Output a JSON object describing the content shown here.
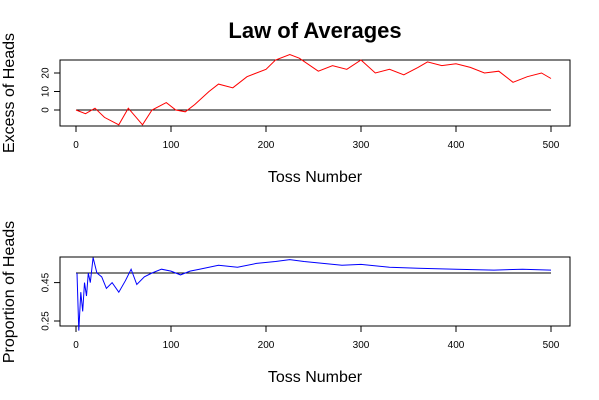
{
  "chart_data": [
    {
      "type": "line",
      "title": "Law of Averages",
      "xlabel": "Toss Number",
      "ylabel": "Excess of Heads",
      "xlim": [
        0,
        500
      ],
      "ylim": [
        -8,
        30
      ],
      "x_ticks": [
        0,
        100,
        200,
        300,
        400,
        500
      ],
      "y_ticks": [
        0,
        10,
        20
      ],
      "reference_line": 0,
      "series": [
        {
          "color": "#ff0000",
          "x": [
            0,
            10,
            20,
            30,
            45,
            55,
            70,
            80,
            95,
            105,
            115,
            125,
            140,
            150,
            165,
            180,
            200,
            210,
            225,
            235,
            255,
            270,
            285,
            300,
            315,
            330,
            345,
            360,
            370,
            385,
            400,
            415,
            430,
            445,
            460,
            475,
            490,
            500
          ],
          "values": [
            0,
            -2,
            1,
            -4,
            -8,
            1,
            -8,
            0,
            4,
            0,
            -1,
            3,
            10,
            14,
            12,
            18,
            22,
            27,
            30,
            28,
            21,
            24,
            22,
            27,
            20,
            22,
            19,
            23,
            26,
            24,
            25,
            23,
            20,
            21,
            15,
            18,
            20,
            17
          ]
        }
      ]
    },
    {
      "type": "line",
      "xlabel": "Toss Number",
      "ylabel": "Proportion of Heads",
      "xlim": [
        0,
        500
      ],
      "ylim": [
        0.2,
        0.62
      ],
      "x_ticks": [
        0,
        100,
        200,
        300,
        400,
        500
      ],
      "y_ticks": [
        0.25,
        0.45
      ],
      "reference_line": 0.5,
      "series": [
        {
          "color": "#0000ff",
          "x": [
            1,
            3,
            5,
            7,
            9,
            11,
            13,
            15,
            18,
            22,
            27,
            32,
            38,
            45,
            52,
            58,
            64,
            72,
            80,
            90,
            100,
            110,
            120,
            130,
            150,
            170,
            190,
            210,
            225,
            240,
            260,
            280,
            300,
            330,
            360,
            400,
            440,
            470,
            500
          ],
          "values": [
            0.5,
            0.2,
            0.4,
            0.3,
            0.45,
            0.38,
            0.5,
            0.45,
            0.58,
            0.5,
            0.48,
            0.42,
            0.45,
            0.4,
            0.46,
            0.52,
            0.44,
            0.48,
            0.5,
            0.52,
            0.51,
            0.49,
            0.51,
            0.52,
            0.54,
            0.53,
            0.55,
            0.56,
            0.57,
            0.56,
            0.55,
            0.54,
            0.545,
            0.53,
            0.525,
            0.52,
            0.515,
            0.52,
            0.515
          ]
        }
      ]
    }
  ]
}
